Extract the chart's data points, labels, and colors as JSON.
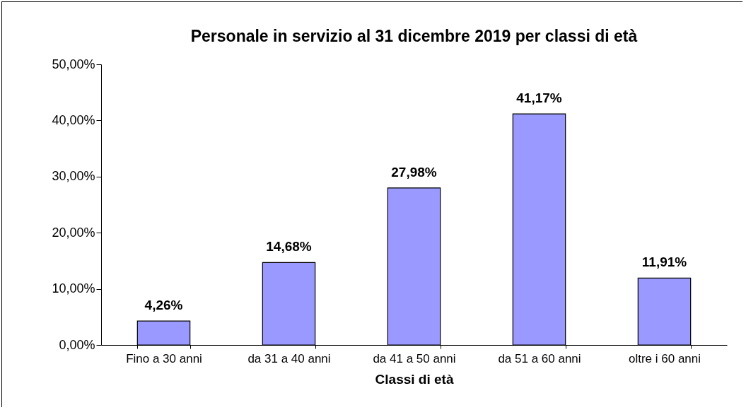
{
  "chart_data": {
    "type": "bar",
    "title": "Personale in servizio al 31 dicembre 2019 per classi di età",
    "xlabel": "Classi di età",
    "categories": [
      "Fino a 30 anni",
      "da 31 a 40 anni",
      "da 41 a 50 anni",
      "da 51 a 60 anni",
      "oltre i 60 anni"
    ],
    "values": [
      4.26,
      14.68,
      27.98,
      41.17,
      11.91
    ],
    "value_labels": [
      "4,26%",
      "14,68%",
      "27,98%",
      "41,17%",
      "11,91%"
    ],
    "color": "#9999ff",
    "ylim": [
      0,
      50
    ],
    "yticks": [
      {
        "value": 0,
        "label": "0,00%"
      },
      {
        "value": 10,
        "label": "10,00%"
      },
      {
        "value": 20,
        "label": "20,00%"
      },
      {
        "value": 30,
        "label": "30,00%"
      },
      {
        "value": 40,
        "label": "40,00%"
      },
      {
        "value": 50,
        "label": "50,00%"
      }
    ],
    "grid": false
  }
}
